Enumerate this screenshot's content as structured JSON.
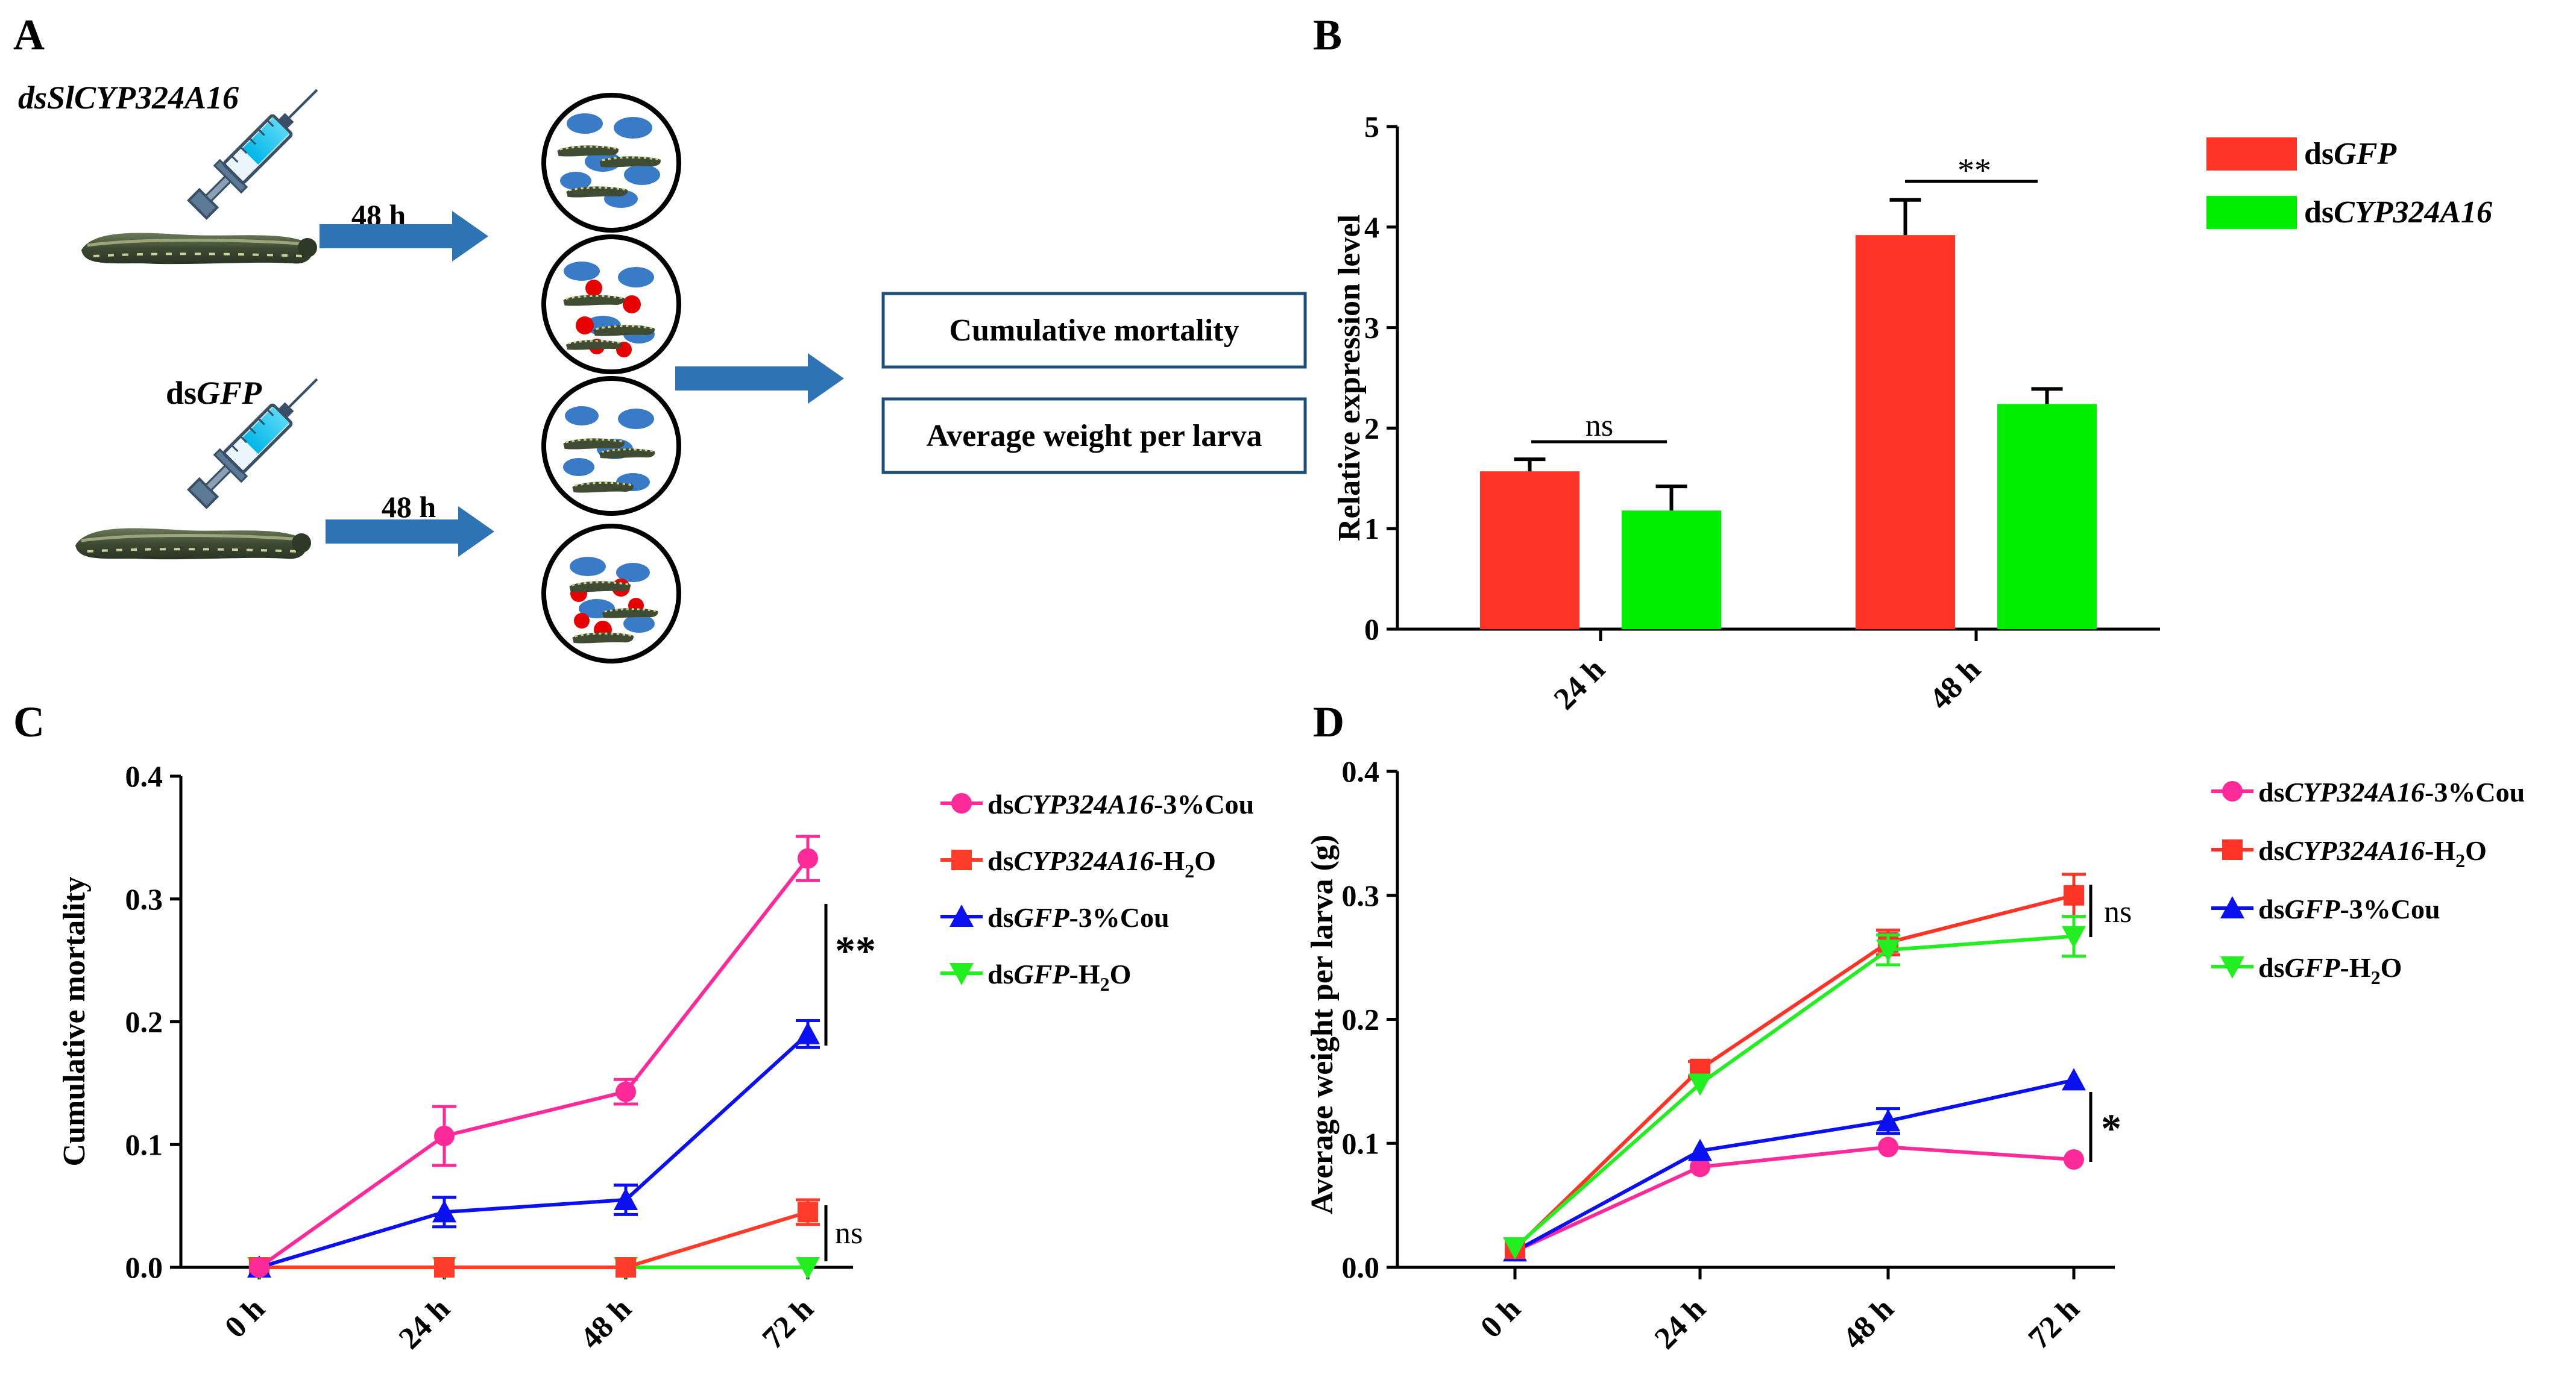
{
  "panel_labels": [
    "A",
    "B",
    "C",
    "D"
  ],
  "schematic": {
    "injection_top": "dsSlCYP324A16",
    "injection_bottom_prefix": "ds",
    "injection_bottom_italic": "GFP",
    "time_top": "48 h",
    "time_bottom": "48 h",
    "box1": "Cumulative mortality",
    "box2": "Average weight per larva"
  },
  "colors": {
    "red": "#ff3326",
    "green": "#00ee00",
    "pink": "#ff2a9a",
    "orange_red": "#ff3b2a",
    "blue": "#0a10f0",
    "lime": "#22ee22",
    "arrow": "#2e74b5",
    "box_border": "#1f4e79",
    "leaf": "#3a7bc8",
    "dot": "#e60000"
  },
  "icons": [
    "syringe-icon",
    "caterpillar-icon",
    "arrow-right-icon",
    "petri-dish-icon"
  ],
  "chart_data": [
    {
      "id": "B",
      "type": "bar",
      "title": "",
      "xlabel": "",
      "ylabel": "Relative expression level",
      "categories": [
        "24 h",
        "48 h"
      ],
      "ylim": [
        0,
        5
      ],
      "yticks": [
        "0",
        "1",
        "2",
        "3",
        "4",
        "5"
      ],
      "series": [
        {
          "name": "dsGFP",
          "prefix": "ds",
          "italic": "GFP",
          "values": [
            1.57,
            3.92
          ],
          "errors": [
            0.12,
            0.35
          ]
        },
        {
          "name": "dsCYP324A16",
          "prefix": "ds",
          "italic": "CYP324A16",
          "values": [
            1.18,
            2.24
          ],
          "errors": [
            0.24,
            0.15
          ]
        }
      ],
      "annotations": [
        "ns",
        "**"
      ],
      "legend": "top-right"
    },
    {
      "id": "C",
      "type": "line",
      "title": "",
      "xlabel": "",
      "ylabel": "Cumulative mortality",
      "x": [
        "0 h",
        "24 h",
        "48 h",
        "72 h"
      ],
      "ylim": [
        0,
        0.4
      ],
      "yticks": [
        "0.0",
        "0.1",
        "0.2",
        "0.3",
        "0.4"
      ],
      "series": [
        {
          "name": "dsCYP324A16-3%Cou",
          "prefix": "ds",
          "italic": "CYP324A16",
          "suffix": "-3%Cou",
          "marker": "circle",
          "values": [
            0,
            0.107,
            0.143,
            0.333
          ],
          "errors": [
            0,
            0.024,
            0.01,
            0.018
          ]
        },
        {
          "name": "dsCYP324A16-H2O",
          "prefix": "ds",
          "italic": "CYP324A16",
          "suffix": "-H",
          "sub": "2",
          "suffix2": "O",
          "marker": "square",
          "values": [
            0,
            0,
            0,
            0.045
          ],
          "errors": [
            0,
            0,
            0,
            0.01
          ]
        },
        {
          "name": "dsGFP-3%Cou",
          "prefix": "ds",
          "italic": "GFP",
          "suffix": "-3%Cou",
          "marker": "triangle-up",
          "values": [
            0,
            0.045,
            0.055,
            0.19
          ],
          "errors": [
            0,
            0.012,
            0.012,
            0.011
          ]
        },
        {
          "name": "dsGFP-H2O",
          "prefix": "ds",
          "italic": "GFP",
          "suffix": "-H",
          "sub": "2",
          "suffix2": "O",
          "marker": "triangle-down",
          "values": [
            0,
            0,
            0,
            0
          ],
          "errors": [
            0,
            0,
            0,
            0
          ]
        }
      ],
      "annotations": [
        "**",
        "ns"
      ],
      "legend": "top-right"
    },
    {
      "id": "D",
      "type": "line",
      "title": "",
      "xlabel": "",
      "ylabel": "Average weight per larva (g)",
      "x": [
        "0 h",
        "24 h",
        "48 h",
        "72 h"
      ],
      "ylim": [
        0,
        0.4
      ],
      "yticks": [
        "0.0",
        "0.1",
        "0.2",
        "0.3",
        "0.4"
      ],
      "series": [
        {
          "name": "dsCYP324A16-3%Cou",
          "prefix": "ds",
          "italic": "CYP324A16",
          "suffix": "-3%Cou",
          "marker": "circle",
          "values": [
            0.013,
            0.081,
            0.097,
            0.087
          ],
          "errors": [
            0,
            0,
            0,
            0
          ]
        },
        {
          "name": "dsCYP324A16-H2O",
          "prefix": "ds",
          "italic": "CYP324A16",
          "suffix": "-H",
          "sub": "2",
          "suffix2": "O",
          "marker": "square",
          "values": [
            0.015,
            0.16,
            0.262,
            0.3
          ],
          "errors": [
            0,
            0.006,
            0.01,
            0.017
          ]
        },
        {
          "name": "dsGFP-3%Cou",
          "prefix": "ds",
          "italic": "GFP",
          "suffix": "-3%Cou",
          "marker": "triangle-up",
          "values": [
            0.013,
            0.094,
            0.118,
            0.151
          ],
          "errors": [
            0,
            0,
            0.01,
            0
          ]
        },
        {
          "name": "dsGFP-H2O",
          "prefix": "ds",
          "italic": "GFP",
          "suffix": "-H",
          "sub": "2",
          "suffix2": "O",
          "marker": "triangle-down",
          "values": [
            0.016,
            0.148,
            0.256,
            0.267
          ],
          "errors": [
            0,
            0,
            0.012,
            0.016
          ]
        }
      ],
      "annotations": [
        "ns",
        "*"
      ],
      "legend": "top-right"
    }
  ]
}
